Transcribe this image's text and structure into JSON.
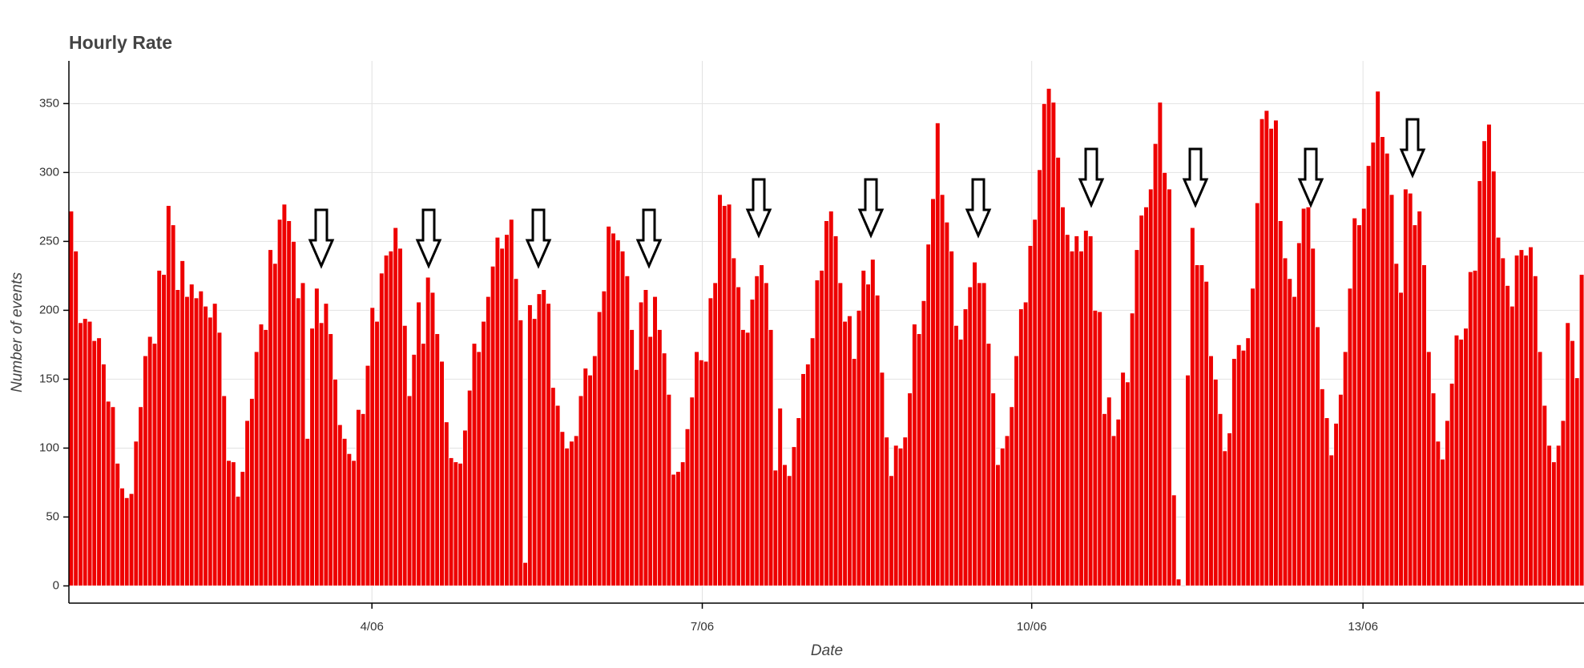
{
  "chart_data": {
    "type": "bar",
    "title": "Hourly Rate",
    "x_label": "Date",
    "y_label": "Number of events",
    "color": "#ee0000",
    "values": [
      272,
      243,
      191,
      194,
      192,
      178,
      180,
      161,
      134,
      130,
      89,
      71,
      64,
      67,
      105,
      130,
      167,
      181,
      176,
      229,
      226,
      276,
      262,
      215,
      236,
      210,
      219,
      209,
      214,
      203,
      195,
      205,
      184,
      138,
      91,
      90,
      65,
      83,
      120,
      136,
      170,
      190,
      186,
      244,
      234,
      266,
      277,
      265,
      250,
      209,
      220,
      107,
      187,
      216,
      191,
      205,
      183,
      150,
      117,
      107,
      96,
      91,
      128,
      125,
      160,
      202,
      192,
      227,
      240,
      243,
      260,
      245,
      189,
      138,
      168,
      206,
      176,
      224,
      213,
      183,
      163,
      119,
      93,
      90,
      89,
      113,
      142,
      176,
      170,
      192,
      210,
      232,
      253,
      245,
      255,
      266,
      223,
      193,
      17,
      204,
      194,
      212,
      215,
      205,
      144,
      131,
      112,
      100,
      105,
      109,
      138,
      158,
      153,
      167,
      199,
      214,
      261,
      256,
      251,
      243,
      225,
      186,
      157,
      206,
      215,
      181,
      210,
      186,
      169,
      139,
      81,
      83,
      90,
      114,
      137,
      170,
      164,
      163,
      209,
      220,
      284,
      276,
      277,
      238,
      217,
      186,
      184,
      208,
      225,
      233,
      220,
      186,
      84,
      129,
      88,
      80,
      101,
      122,
      154,
      161,
      180,
      222,
      229,
      265,
      272,
      254,
      220,
      192,
      196,
      165,
      200,
      229,
      219,
      237,
      211,
      155,
      108,
      80,
      102,
      100,
      108,
      140,
      190,
      183,
      207,
      248,
      281,
      336,
      284,
      264,
      243,
      189,
      179,
      201,
      217,
      235,
      220,
      220,
      176,
      140,
      88,
      100,
      109,
      130,
      167,
      201,
      206,
      247,
      266,
      302,
      350,
      361,
      351,
      311,
      275,
      255,
      243,
      254,
      243,
      258,
      254,
      200,
      199,
      125,
      137,
      109,
      121,
      155,
      148,
      198,
      244,
      269,
      275,
      288,
      321,
      351,
      300,
      288,
      66,
      5,
      0,
      153,
      260,
      233,
      233,
      221,
      167,
      150,
      125,
      98,
      111,
      165,
      175,
      171,
      180,
      216,
      278,
      339,
      345,
      332,
      338,
      265,
      238,
      223,
      210,
      249,
      274,
      275,
      245,
      188,
      143,
      122,
      95,
      118,
      139,
      170,
      216,
      267,
      262,
      274,
      305,
      322,
      359,
      326,
      314,
      284,
      234,
      213,
      288,
      285,
      262,
      272,
      233,
      170,
      140,
      105,
      92,
      120,
      147,
      182,
      179,
      187,
      228,
      229,
      294,
      323,
      335,
      301,
      253,
      238,
      218,
      203,
      240,
      244,
      240,
      246,
      225,
      170,
      131,
      102,
      90,
      102,
      120,
      191,
      178,
      151,
      226
    ],
    "xlim": [
      0,
      327
    ],
    "xticks": [
      {
        "value": 65.4,
        "label": "4/06"
      },
      {
        "value": 136.7,
        "label": "7/06"
      },
      {
        "value": 207.8,
        "label": "10/06"
      },
      {
        "value": 279.3,
        "label": "13/06"
      }
    ],
    "ylim": [
      -12.5,
      381
    ],
    "yticks": [
      0,
      50,
      100,
      150,
      200,
      250,
      300,
      350
    ],
    "grid": true
  }
}
